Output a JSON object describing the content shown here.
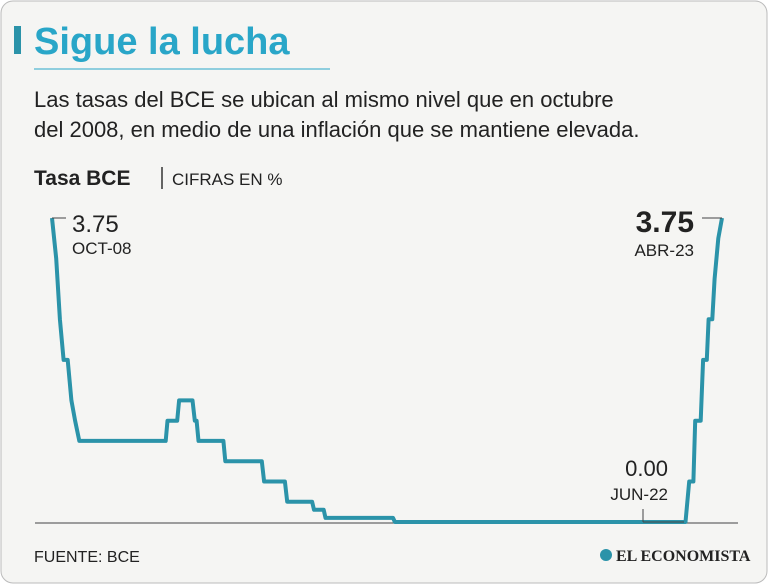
{
  "chart_data": {
    "type": "line",
    "title": "Sigue la lucha",
    "subtitle": [
      "Las tasas del BCE se ubican al mismo nivel que en octubre",
      "del 2008, en medio de una inflación que se mantiene elevada."
    ],
    "series_label": "Tasa BCE",
    "units": "CIFRAS EN %",
    "x": [
      2008.79,
      2008.88,
      2008.96,
      2009.04,
      2009.13,
      2009.21,
      2009.29,
      2009.38,
      2011.25,
      2011.29,
      2011.5,
      2011.54,
      2011.83,
      2011.88,
      2011.92,
      2011.96,
      2012.5,
      2012.54,
      2013.33,
      2013.38,
      2013.83,
      2013.88,
      2014.42,
      2014.46,
      2014.67,
      2014.71,
      2016.17,
      2016.21,
      2022.5,
      2022.58,
      2022.67,
      2022.71,
      2022.83,
      2022.88,
      2022.96,
      2023.0,
      2023.08,
      2023.13,
      2023.21,
      2023.29
    ],
    "values": [
      3.75,
      3.25,
      2.5,
      2.0,
      2.0,
      1.5,
      1.25,
      1.0,
      1.0,
      1.25,
      1.25,
      1.5,
      1.5,
      1.25,
      1.25,
      1.0,
      1.0,
      0.75,
      0.75,
      0.5,
      0.5,
      0.25,
      0.25,
      0.15,
      0.15,
      0.05,
      0.05,
      0,
      0,
      0.5,
      0.5,
      1.25,
      1.25,
      2.0,
      2.0,
      2.5,
      2.5,
      3.0,
      3.5,
      3.75
    ],
    "color": "#2b93a9",
    "xlim": [
      2008.79,
      2023.29
    ],
    "ylim": [
      0,
      3.75
    ],
    "annotations": [
      {
        "text": "3.75",
        "date": "OCT-08"
      },
      {
        "text": "3.75",
        "date": "ABR-23"
      },
      {
        "text": "0.00",
        "date": "JUN-22"
      }
    ],
    "source": "FUENTE: BCE",
    "brand": "EL ECONOMISTA"
  }
}
